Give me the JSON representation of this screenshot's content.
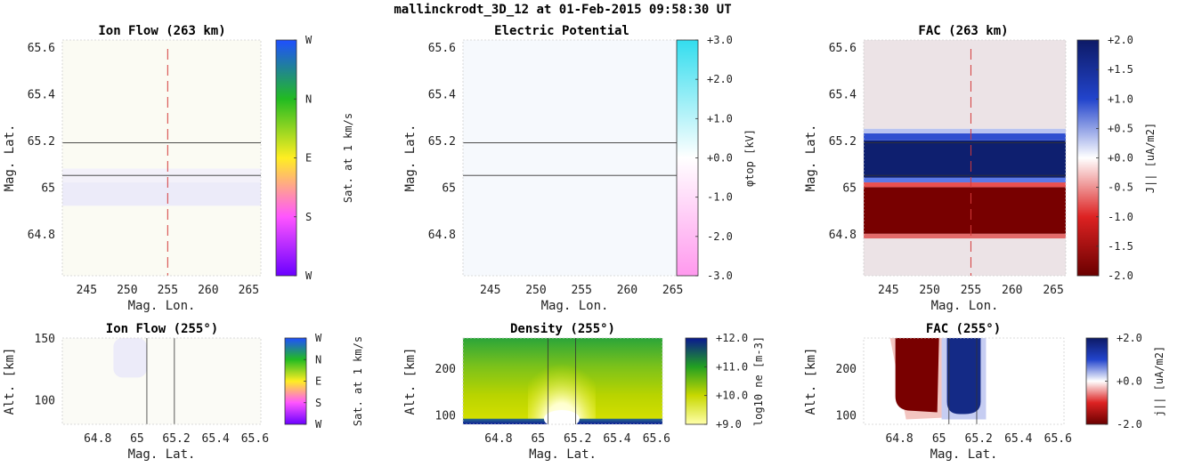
{
  "figure_title": "mallinckrodt_3D_12 at 01-Feb-2015 09:58:30 UT",
  "chart_data": [
    {
      "id": "ion-flow-top",
      "type": "heatmap",
      "title": "Ion Flow (263 km)",
      "xlabel": "Mag. Lon.",
      "ylabel": "Mag. Lat.",
      "xlim": [
        242,
        266.5
      ],
      "ylim": [
        64.62,
        65.63
      ],
      "x_ticks": [
        245,
        250,
        255,
        260,
        265
      ],
      "y_ticks": [
        64.8,
        65,
        65.2,
        65.4,
        65.6
      ],
      "y_tick_labels": [
        "64.8",
        "65",
        "65.2",
        "65.4",
        "65.6"
      ],
      "colorbar": {
        "label": "Sat. at 1 km/s",
        "ticks": [
          "W",
          "N",
          "E",
          "S",
          "W"
        ],
        "colors": [
          "#6a00ff",
          "#ff55ff",
          "#ffee22",
          "#22bb22",
          "#1f4fff"
        ]
      },
      "field": {
        "kind": "bands",
        "bands": [
          {
            "y0": 64.62,
            "y1": 64.92,
            "color": "#fbfbf3"
          },
          {
            "y0": 64.92,
            "y1": 65.02,
            "color": "#ecebf9"
          },
          {
            "y0": 65.02,
            "y1": 65.08,
            "color": "#f3f1fa"
          },
          {
            "y0": 65.08,
            "y1": 65.63,
            "color": "#fbfbf3"
          }
        ]
      },
      "h_lines": [
        65.19,
        65.05
      ],
      "v_dashed": 255
    },
    {
      "id": "potential-top",
      "type": "heatmap",
      "title": "Electric Potential",
      "xlabel": "Mag. Lon.",
      "ylabel": "Mag. Lat.",
      "xlim": [
        242,
        266.5
      ],
      "ylim": [
        64.62,
        65.63
      ],
      "x_ticks": [
        245,
        250,
        255,
        260,
        265
      ],
      "y_ticks": [
        64.8,
        65,
        65.2,
        65.4,
        65.6
      ],
      "y_tick_labels": [
        "64.8",
        "65",
        "65.2",
        "65.4",
        "65.6"
      ],
      "colorbar": {
        "label": "φtop [kV]",
        "ticks": [
          "+3.0",
          "+2.0",
          "+1.0",
          "+0.0",
          "-1.0",
          "-2.0",
          "-3.0"
        ],
        "colors": [
          "#ff99ee",
          "#ffffff",
          "#33ddee"
        ]
      },
      "field": {
        "kind": "bands",
        "bands": [
          {
            "y0": 64.62,
            "y1": 65.63,
            "color": "#f6f9fd"
          }
        ]
      },
      "h_lines": [
        65.19,
        65.05
      ]
    },
    {
      "id": "fac-top",
      "type": "heatmap",
      "title": "FAC (263 km)",
      "xlabel": "Mag. Lon.",
      "ylabel": "Mag. Lat.",
      "xlim": [
        242,
        266.5
      ],
      "ylim": [
        64.62,
        65.63
      ],
      "x_ticks": [
        245,
        250,
        255,
        260,
        265
      ],
      "y_ticks": [
        64.8,
        65,
        65.2,
        65.4,
        65.6
      ],
      "y_tick_labels": [
        "64.8",
        "65",
        "65.2",
        "65.4",
        "65.6"
      ],
      "colorbar": {
        "label": "J|| [uA/m2]",
        "ticks": [
          "+2.0",
          "+1.5",
          "+1.0",
          "+0.5",
          "+0.0",
          "-0.5",
          "-1.0",
          "-1.5",
          "-2.0"
        ],
        "colors": [
          "#6a0000",
          "#dd2222",
          "#ffffff",
          "#2244cc",
          "#0d1a66"
        ]
      },
      "field": {
        "kind": "bands",
        "bands": [
          {
            "y0": 64.62,
            "y1": 64.78,
            "color": "#ece3e6"
          },
          {
            "y0": 64.78,
            "y1": 64.8,
            "color": "#e26a6a"
          },
          {
            "y0": 64.8,
            "y1": 65.0,
            "color": "#780000"
          },
          {
            "y0": 65.0,
            "y1": 65.02,
            "color": "#e85050"
          },
          {
            "y0": 65.02,
            "y1": 65.04,
            "color": "#5a78e8"
          },
          {
            "y0": 65.04,
            "y1": 65.2,
            "color": "#0e1f6f"
          },
          {
            "y0": 65.2,
            "y1": 65.23,
            "color": "#2f4fd0"
          },
          {
            "y0": 65.23,
            "y1": 65.25,
            "color": "#b8c3f1"
          },
          {
            "y0": 65.25,
            "y1": 65.63,
            "color": "#ece3e6"
          }
        ]
      },
      "h_lines": [
        65.19,
        65.05
      ],
      "v_dashed": 255
    },
    {
      "id": "ion-flow-bottom",
      "type": "heatmap",
      "title": "Ion Flow (255°)",
      "xlabel": "Mag. Lat.",
      "ylabel": "Alt. [km]",
      "xlim": [
        64.62,
        65.63
      ],
      "ylim": [
        80,
        150
      ],
      "x_ticks": [
        64.8,
        65,
        65.2,
        65.4,
        65.6
      ],
      "x_tick_labels": [
        "64.8",
        "65",
        "65.2",
        "65.4",
        "65.6"
      ],
      "y_ticks": [
        100,
        150
      ],
      "colorbar": {
        "label": "Sat. at 1 km/s",
        "ticks": [
          "W",
          "N",
          "E",
          "S",
          "W"
        ],
        "colors": [
          "#6a00ff",
          "#ff55ff",
          "#ffee22",
          "#22bb22",
          "#1f4fff"
        ]
      },
      "field": {
        "kind": "bands",
        "bands": [
          {
            "y0": 80,
            "y1": 150,
            "color": "#fbfbf6"
          }
        ]
      },
      "blobs": [
        {
          "x0": 64.88,
          "x1": 65.05,
          "y0": 118,
          "y1": 150,
          "color": "#ecebf9"
        }
      ],
      "v_lines": [
        65.05,
        65.19
      ]
    },
    {
      "id": "density-bottom",
      "type": "heatmap",
      "title": "Density (255°)",
      "xlabel": "Mag. Lat.",
      "ylabel": "Alt. [km]",
      "xlim": [
        64.62,
        65.63
      ],
      "ylim": [
        80,
        265
      ],
      "x_ticks": [
        64.8,
        65,
        65.2,
        65.4,
        65.6
      ],
      "x_tick_labels": [
        "64.8",
        "65",
        "65.2",
        "65.4",
        "65.6"
      ],
      "y_ticks": [
        100,
        200
      ],
      "colorbar": {
        "label": "log10 ne [m-3]",
        "ticks": [
          "+12.0",
          "+11.0",
          "+10.0",
          "+9.0"
        ],
        "colors": [
          "#ffffaa",
          "#c8d800",
          "#22a022",
          "#0a1890"
        ]
      },
      "field": {
        "kind": "density"
      },
      "v_lines": [
        65.05,
        65.19
      ]
    },
    {
      "id": "fac-bottom",
      "type": "heatmap",
      "title": "FAC (255°)",
      "xlabel": "Mag. Lat.",
      "ylabel": "Alt. [km]",
      "xlim": [
        64.62,
        65.63
      ],
      "ylim": [
        80,
        265
      ],
      "x_ticks": [
        64.8,
        65,
        65.2,
        65.4,
        65.6
      ],
      "x_tick_labels": [
        "64.8",
        "65",
        "65.2",
        "65.4",
        "65.6"
      ],
      "y_ticks": [
        100,
        200
      ],
      "colorbar": {
        "label": "j|| [uA/m2]",
        "ticks": [
          "+2.0",
          "+0.0",
          "-2.0"
        ],
        "colors": [
          "#6a0000",
          "#dd2222",
          "#ffffff",
          "#2244cc",
          "#0d1a66"
        ]
      },
      "field": {
        "kind": "fac_slice"
      },
      "v_lines": [
        65.05,
        65.19
      ]
    }
  ]
}
